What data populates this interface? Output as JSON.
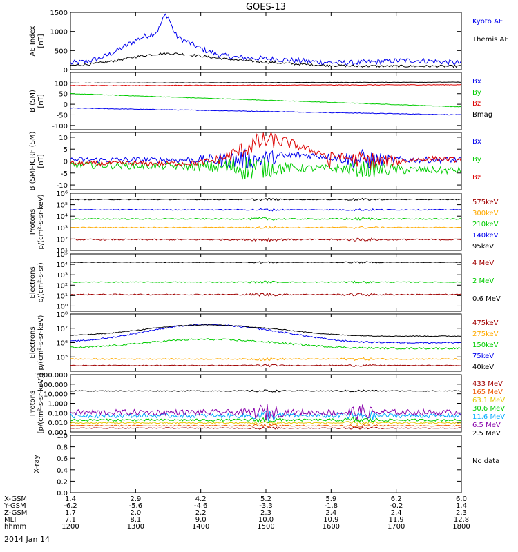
{
  "title": "GOES-13",
  "date_label": "2014 Jan 14",
  "empty_panel_note": "No data",
  "x_axis": {
    "tick_positions": [
      1200,
      1300,
      1400,
      1500,
      1600,
      1700,
      1800
    ],
    "rows": [
      {
        "name": "X-GSM",
        "values": [
          "1.4",
          "2.9",
          "4.2",
          "5.2",
          "5.9",
          "6.2",
          "6.0"
        ]
      },
      {
        "name": "Y-GSM",
        "values": [
          "-6.2",
          "-5.6",
          "-4.6",
          "-3.3",
          "-1.8",
          "-0.2",
          "1.4"
        ]
      },
      {
        "name": "Z-GSM",
        "values": [
          "1.7",
          "2.0",
          "2.2",
          "2.3",
          "2.4",
          "2.4",
          "2.3"
        ]
      },
      {
        "name": "MLT",
        "values": [
          "7.1",
          "8.1",
          "9.0",
          "10.0",
          "10.9",
          "11.9",
          "12.8"
        ]
      },
      {
        "name": "hhmm",
        "values": [
          "1200",
          "1300",
          "1400",
          "1500",
          "1600",
          "1700",
          "1800"
        ]
      }
    ]
  },
  "colors": {
    "black": "#000000",
    "blue": "#0000ee",
    "green": "#00cc00",
    "red": "#dd0000",
    "darkred": "#a00000",
    "orange": "#ffaa00",
    "darkorange": "#ee5500",
    "gold": "#e6c800",
    "cyan": "#00aaff",
    "purple": "#8800aa"
  },
  "chart_data": [
    {
      "type": "line",
      "ylabel": "AE Index\n[nT]",
      "ylim": [
        0,
        1500
      ],
      "log": false,
      "ticks": [
        "0",
        "500",
        "1000",
        "1500"
      ],
      "series": [
        {
          "name": "Kyoto AE",
          "color": "blue",
          "shape": "ae_kyoto"
        },
        {
          "name": "Themis AE",
          "color": "black",
          "shape": "ae_themis"
        }
      ]
    },
    {
      "type": "line",
      "ylabel": "B (SM)\n[nT]",
      "ylim": [
        -120,
        150
      ],
      "log": false,
      "ticks": [
        "-100",
        "-50",
        "0",
        "50",
        "100"
      ],
      "series": [
        {
          "name": "Bx",
          "color": "blue",
          "shape": "lin",
          "from": -18,
          "to": -50,
          "noise": 1.5
        },
        {
          "name": "By",
          "color": "green",
          "shape": "lin",
          "from": 50,
          "to": -12,
          "noise": 1.2
        },
        {
          "name": "Bz",
          "color": "red",
          "shape": "lin",
          "from": 88,
          "to": 92,
          "noise": 1.5
        },
        {
          "name": "Bmag",
          "color": "black",
          "shape": "lin",
          "from": 100,
          "to": 104,
          "noise": 0.8
        }
      ]
    },
    {
      "type": "line",
      "ylabel": "B (SM)-IGRF (SM)\n[nT]",
      "ylim": [
        -12,
        12
      ],
      "log": false,
      "ticks": [
        "-10",
        "-5",
        "0",
        "5",
        "10"
      ],
      "series": [
        {
          "name": "Bx",
          "color": "blue",
          "shape": "dbx"
        },
        {
          "name": "By",
          "color": "green",
          "shape": "dby"
        },
        {
          "name": "Bz",
          "color": "red",
          "shape": "dbz"
        }
      ]
    },
    {
      "type": "line",
      "ylabel": "Protons\np/(cm²-s-sr-keV)",
      "ylim": [
        1,
        6
      ],
      "log": true,
      "ticks": [
        "10⁶",
        "10⁵",
        "10⁴",
        "10³",
        "10²",
        "10¹"
      ],
      "series": [
        {
          "name": "575keV",
          "color": "darkred",
          "shape": "flat",
          "level": 1.95,
          "noise": 0.06
        },
        {
          "name": "300keV",
          "color": "orange",
          "shape": "flat",
          "level": 3.0,
          "noise": 0.04
        },
        {
          "name": "210keV",
          "color": "green",
          "shape": "flat",
          "level": 3.75,
          "noise": 0.05
        },
        {
          "name": "140keV",
          "color": "blue",
          "shape": "flat",
          "level": 4.55,
          "noise": 0.04
        },
        {
          "name": "95keV",
          "color": "black",
          "shape": "flat",
          "level": 5.45,
          "noise": 0.04
        }
      ]
    },
    {
      "type": "line",
      "ylabel": "Electrons\np/(cm²-s-sr)",
      "ylim": [
        -0.5,
        5
      ],
      "log": true,
      "ticks": [
        "10⁵",
        "10⁴",
        "10³",
        "10²",
        "10¹",
        "10⁰"
      ],
      "series": [
        {
          "name": "4 MeV",
          "color": "darkred",
          "shape": "flat",
          "level": 1.1,
          "noise": 0.06
        },
        {
          "name": "2 MeV",
          "color": "green",
          "shape": "flat",
          "level": 2.3,
          "noise": 0.04
        },
        {
          "name": "0.6 MeV",
          "color": "black",
          "shape": "flat",
          "level": 4.2,
          "noise": 0.03
        }
      ]
    },
    {
      "type": "line",
      "ylabel": "Electrons\np/(cm²-s-sr-keV)",
      "ylim": [
        4,
        8
      ],
      "log": true,
      "ticks": [
        "10⁸",
        "10⁷",
        "10⁶",
        "10⁵"
      ],
      "series": [
        {
          "name": "475keV",
          "color": "darkred",
          "shape": "flat",
          "level": 4.4,
          "noise": 0.03
        },
        {
          "name": "275keV",
          "color": "orange",
          "shape": "flat",
          "level": 4.85,
          "noise": 0.04
        },
        {
          "name": "150keV",
          "color": "green",
          "shape": "bump",
          "level": 5.6,
          "peak": 0.6,
          "noise": 0.06
        },
        {
          "name": "75keV",
          "color": "blue",
          "shape": "bump",
          "level": 6.0,
          "peak": 1.2,
          "noise": 0.05
        },
        {
          "name": "40keV",
          "color": "black",
          "shape": "bump",
          "level": 6.45,
          "peak": 0.75,
          "noise": 0.03
        }
      ]
    },
    {
      "type": "line",
      "ylabel": "Protons\n[p/(cm²-s-sr-keV)]",
      "ylim": [
        -3,
        3
      ],
      "log": true,
      "ticks": [
        "1000.000",
        "100.000",
        "10.000",
        "1.000",
        "0.100",
        "0.010",
        "0.001"
      ],
      "series": [
        {
          "name": "433 MeV",
          "color": "darkred",
          "shape": "flat",
          "level": -2.6,
          "noise": 0.05
        },
        {
          "name": "165 MeV",
          "color": "darkorange",
          "shape": "flat",
          "level": -2.35,
          "noise": 0.06
        },
        {
          "name": "63.1 MeV",
          "color": "gold",
          "shape": "flat",
          "level": -2.05,
          "noise": 0.08
        },
        {
          "name": "30.6 MeV",
          "color": "green",
          "shape": "flat",
          "level": -1.75,
          "noise": 0.12
        },
        {
          "name": "11.6 MeV",
          "color": "cyan",
          "shape": "flat",
          "level": -1.3,
          "noise": 0.22
        },
        {
          "name": "6.5 MeV",
          "color": "purple",
          "shape": "flat",
          "level": -0.95,
          "noise": 0.3
        },
        {
          "name": "2.5 MeV",
          "color": "black",
          "shape": "flat",
          "level": 1.3,
          "noise": 0.05
        }
      ]
    },
    {
      "type": "line",
      "ylabel": "X-ray",
      "ylim": [
        0,
        1
      ],
      "log": false,
      "ticks": [
        "0.0",
        "0.2",
        "0.4",
        "0.6",
        "0.8",
        "1.0"
      ],
      "series": []
    }
  ]
}
